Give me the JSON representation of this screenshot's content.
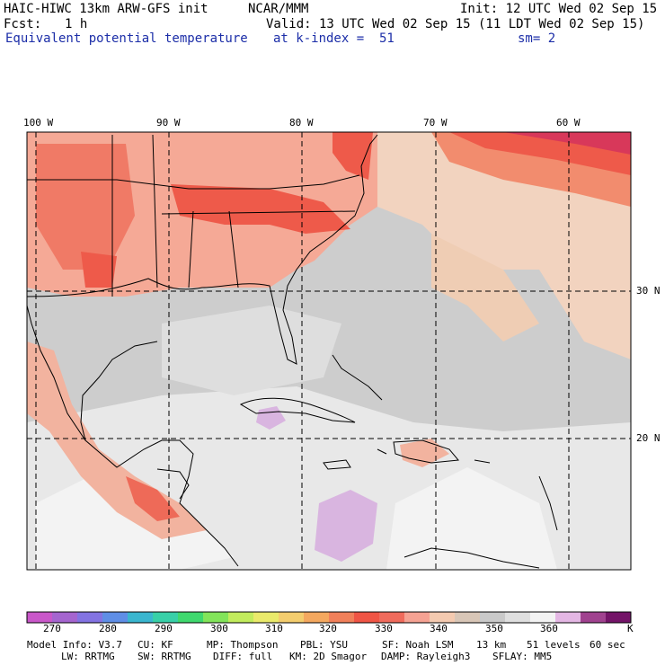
{
  "header": {
    "model_title": "HAIC-HIWC 13km ARW-GFS init",
    "org": "NCAR/MMM",
    "init": "Init: 12 UTC Wed 02 Sep 15",
    "fcst_label": "Fcst:",
    "fcst_value": "1 h",
    "valid": "Valid: 13 UTC Wed 02 Sep 15 (11 LDT Wed 02 Sep 15)",
    "field_name": "Equivalent potential temperature",
    "level": "at k-index =  51",
    "smoothing": "sm= 2"
  },
  "map": {
    "lon_labels": [
      "100 W",
      "90 W",
      "80 W",
      "70 W",
      "60 W"
    ],
    "lat_labels": [
      "30 N",
      "20 N"
    ],
    "colors": {
      "border": "#000000",
      "grid": "#000000"
    }
  },
  "colorbar": {
    "colors": [
      "#c957c9",
      "#a565cf",
      "#8373e2",
      "#5f8ee6",
      "#3ab6cf",
      "#38d0a8",
      "#3fd86e",
      "#82e45a",
      "#c2ec5d",
      "#eaea6b",
      "#f4cd6e",
      "#f4a85f",
      "#f1805a",
      "#f05545",
      "#f06b5c",
      "#f5a293",
      "#f4cab0",
      "#d8c6b7",
      "#c9c9c9",
      "#dfdfdf",
      "#f3f3f3",
      "#e4b7e4",
      "#a0428f",
      "#741468"
    ],
    "tick_labels": [
      "270",
      "280",
      "290",
      "300",
      "310",
      "320",
      "330",
      "340",
      "350",
      "360"
    ],
    "unit": "K"
  },
  "footer": {
    "line1": [
      "Model Info: V3.7",
      "CU: KF",
      "MP: Thompson",
      "PBL: YSU",
      "SF: Noah LSM",
      "13 km",
      "51 levels",
      "60 sec"
    ],
    "line2": [
      "LW: RRTMG",
      "SW: RRTMG",
      "DIFF: full",
      "KM: 2D Smagor",
      "DAMP: Rayleigh3",
      "SFLAY: MM5"
    ]
  }
}
